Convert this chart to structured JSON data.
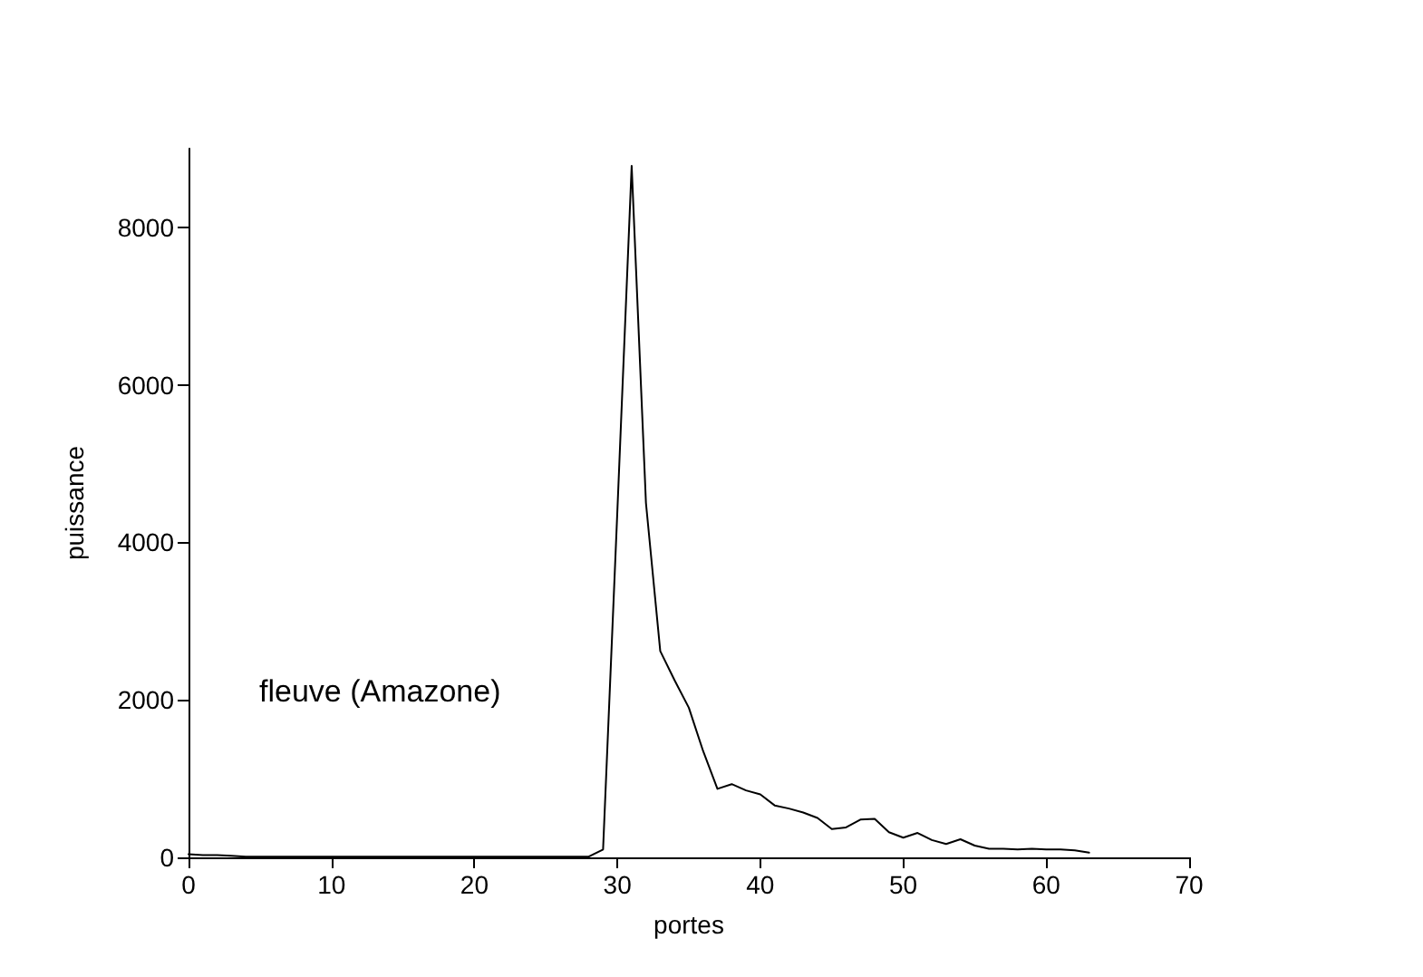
{
  "chart_data": {
    "type": "line",
    "xlabel": "portes",
    "ylabel": "puissance",
    "annotations": [
      "fleuve (Amazone)"
    ],
    "x": [
      0,
      1,
      2,
      3,
      4,
      5,
      6,
      7,
      8,
      9,
      10,
      11,
      12,
      13,
      14,
      15,
      16,
      17,
      18,
      19,
      20,
      21,
      22,
      23,
      24,
      25,
      26,
      27,
      28,
      29,
      30,
      31,
      32,
      33,
      34,
      35,
      36,
      37,
      38,
      39,
      40,
      41,
      42,
      43,
      44,
      45,
      46,
      47,
      48,
      49,
      50,
      51,
      52,
      53,
      54,
      55,
      56,
      57,
      58,
      59,
      60,
      61,
      62,
      63
    ],
    "series": [
      {
        "color": "#000000",
        "values": [
          40,
          30,
          30,
          20,
          10,
          10,
          10,
          10,
          10,
          10,
          10,
          10,
          10,
          10,
          10,
          10,
          10,
          10,
          10,
          10,
          10,
          10,
          10,
          10,
          10,
          10,
          10,
          10,
          10,
          100,
          4400,
          8780,
          4500,
          2620,
          2250,
          1900,
          1350,
          870,
          930,
          850,
          800,
          660,
          620,
          570,
          500,
          360,
          380,
          480,
          490,
          320,
          250,
          310,
          220,
          170,
          230,
          150,
          110,
          110,
          100,
          110,
          100,
          100,
          90,
          60
        ]
      }
    ],
    "xlim": [
      0,
      70
    ],
    "xticks": [
      0,
      10,
      20,
      30,
      40,
      50,
      60,
      70
    ],
    "ylim": [
      0,
      9000
    ],
    "yticks": [
      0,
      2000,
      4000,
      6000,
      8000
    ],
    "grid": false,
    "marker": "none",
    "line_style": "solid"
  }
}
